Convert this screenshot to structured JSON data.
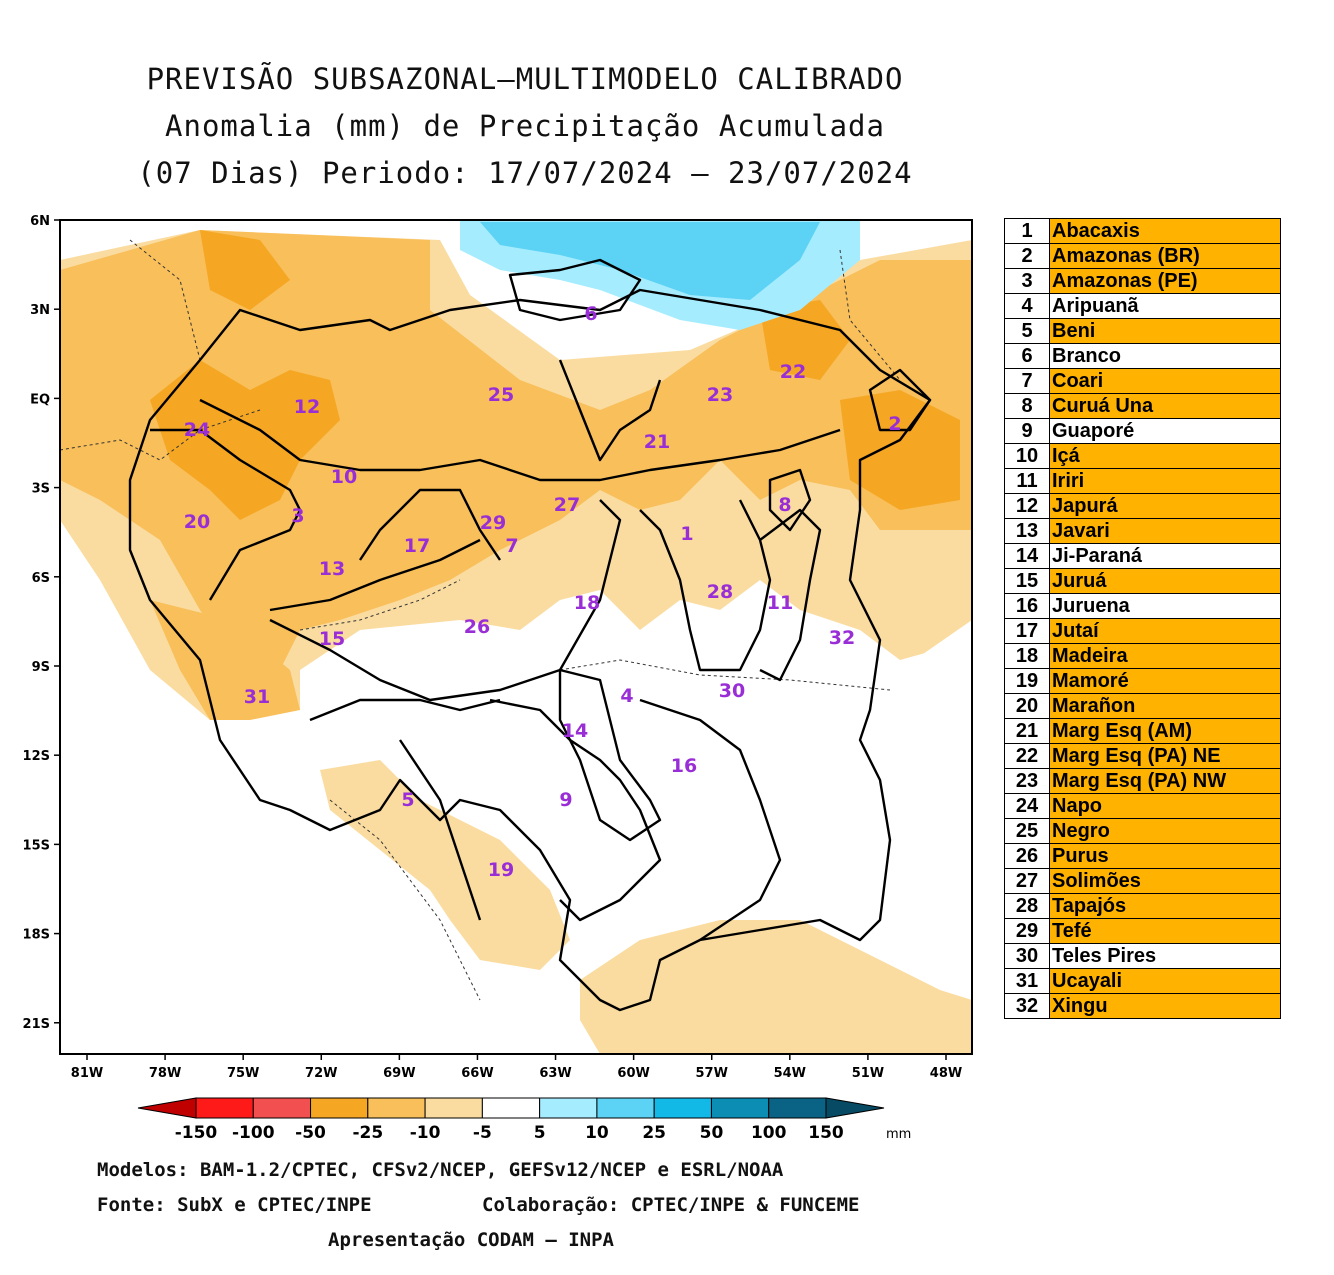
{
  "title": {
    "line1": "PREVISÃO SUBSAZONAL–MULTIMODELO CALIBRADO",
    "line2": "Anomalia (mm) de Precipitação Acumulada",
    "line3": "(07 Dias) Periodo: 17/07/2024 – 23/07/2024"
  },
  "map": {
    "lat_labels": [
      "6N",
      "3N",
      "EQ",
      "3S",
      "6S",
      "9S",
      "12S",
      "15S",
      "18S",
      "21S"
    ],
    "lon_labels": [
      "81W",
      "78W",
      "75W",
      "72W",
      "69W",
      "66W",
      "63W",
      "60W",
      "57W",
      "54W",
      "51W",
      "48W"
    ],
    "basin_numbers": [
      "1",
      "2",
      "3",
      "4",
      "5",
      "6",
      "7",
      "8",
      "9",
      "10",
      "11",
      "12",
      "13",
      "14",
      "15",
      "16",
      "17",
      "18",
      "19",
      "20",
      "21",
      "22",
      "23",
      "24",
      "25",
      "26",
      "27",
      "28",
      "29",
      "30",
      "31",
      "32"
    ]
  },
  "legend": [
    {
      "num": "1",
      "name": "Abacaxis",
      "fill": "#ffb300"
    },
    {
      "num": "2",
      "name": "Amazonas (BR)",
      "fill": "#ffb300"
    },
    {
      "num": "3",
      "name": "Amazonas (PE)",
      "fill": "#ffb300"
    },
    {
      "num": "4",
      "name": "Aripuanã",
      "fill": "#ffffff"
    },
    {
      "num": "5",
      "name": "Beni",
      "fill": "#ffb300"
    },
    {
      "num": "6",
      "name": "Branco",
      "fill": "#ffffff"
    },
    {
      "num": "7",
      "name": "Coari",
      "fill": "#ffb300"
    },
    {
      "num": "8",
      "name": "Curuá Una",
      "fill": "#ffb300"
    },
    {
      "num": "9",
      "name": "Guaporé",
      "fill": "#ffffff"
    },
    {
      "num": "10",
      "name": "Içá",
      "fill": "#ffb300"
    },
    {
      "num": "11",
      "name": "Iriri",
      "fill": "#ffb300"
    },
    {
      "num": "12",
      "name": "Japurá",
      "fill": "#ffb300"
    },
    {
      "num": "13",
      "name": "Javari",
      "fill": "#ffb300"
    },
    {
      "num": "14",
      "name": "Ji-Paraná",
      "fill": "#ffffff"
    },
    {
      "num": "15",
      "name": "Juruá",
      "fill": "#ffb300"
    },
    {
      "num": "16",
      "name": "Juruena",
      "fill": "#ffffff"
    },
    {
      "num": "17",
      "name": "Jutaí",
      "fill": "#ffb300"
    },
    {
      "num": "18",
      "name": "Madeira",
      "fill": "#ffb300"
    },
    {
      "num": "19",
      "name": "Mamoré",
      "fill": "#ffb300"
    },
    {
      "num": "20",
      "name": "Marañon",
      "fill": "#ffb300"
    },
    {
      "num": "21",
      "name": "Marg Esq (AM)",
      "fill": "#ffb300"
    },
    {
      "num": "22",
      "name": "Marg Esq (PA) NE",
      "fill": "#ffb300"
    },
    {
      "num": "23",
      "name": "Marg Esq (PA) NW",
      "fill": "#ffb300"
    },
    {
      "num": "24",
      "name": "Napo",
      "fill": "#ffb300"
    },
    {
      "num": "25",
      "name": "Negro",
      "fill": "#ffb300"
    },
    {
      "num": "26",
      "name": "Purus",
      "fill": "#ffb300"
    },
    {
      "num": "27",
      "name": "Solimões",
      "fill": "#ffb300"
    },
    {
      "num": "28",
      "name": "Tapajós",
      "fill": "#ffb300"
    },
    {
      "num": "29",
      "name": "Tefé",
      "fill": "#ffb300"
    },
    {
      "num": "30",
      "name": "Teles Pires",
      "fill": "#ffffff"
    },
    {
      "num": "31",
      "name": "Ucayali",
      "fill": "#ffb300"
    },
    {
      "num": "32",
      "name": "Xingu",
      "fill": "#ffb300"
    }
  ],
  "colorbar": {
    "labels": [
      "-150",
      "-100",
      "-50",
      "-25",
      "-10",
      "-5",
      "5",
      "10",
      "25",
      "50",
      "100",
      "150"
    ],
    "unit": "mm",
    "colors": [
      "#c00000",
      "#ff1a1a",
      "#f25050",
      "#f5a623",
      "#f8bf5a",
      "#fadca0",
      "#ffffff",
      "#a6ecff",
      "#5cd2f5",
      "#12b8e6",
      "#0b8db4",
      "#0a6384",
      "#064a63"
    ]
  },
  "footer": {
    "models": "Modelos: BAM-1.2/CPTEC, CFSv2/NCEP, GEFSv12/NCEP e ESRL/NOAA",
    "source": "Fonte: SubX e CPTEC/INPE",
    "collab": "Colaboração: CPTEC/INPE & FUNCEME",
    "presentation": "Apresentação CODAM – INPA"
  }
}
